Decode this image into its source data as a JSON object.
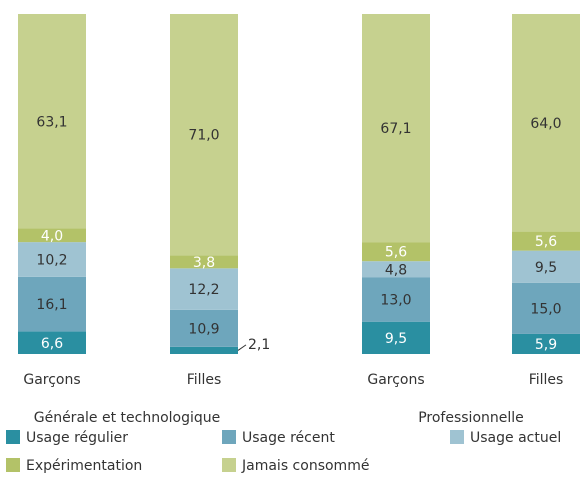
{
  "chart_data": {
    "type": "stacked-bar",
    "groups": [
      "Générale et technologique",
      "Professionnelle"
    ],
    "categories": [
      "Garçons",
      "Filles",
      "Garçons",
      "Filles"
    ],
    "series": [
      {
        "name": "Usage régulier",
        "color": "#2a8fa1",
        "values": [
          6.6,
          2.1,
          9.5,
          5.9
        ],
        "value_labels": [
          "6,6",
          "2,1",
          "9,5",
          "5,9"
        ]
      },
      {
        "name": "Usage récent",
        "color": "#6ea6bc",
        "values": [
          16.1,
          10.9,
          13.0,
          15.0
        ],
        "value_labels": [
          "16,1",
          "10,9",
          "13,0",
          "15,0"
        ]
      },
      {
        "name": "Usage actuel",
        "color": "#9fc3d2",
        "values": [
          10.2,
          12.2,
          4.8,
          9.5
        ],
        "value_labels": [
          "10,2",
          "12,2",
          "4,8",
          "9,5"
        ]
      },
      {
        "name": "Expérimentation",
        "color": "#b3c268",
        "values": [
          4.0,
          3.8,
          5.6,
          5.6
        ],
        "value_labels": [
          "4,0",
          "3,8",
          "5,6",
          "5,6"
        ]
      },
      {
        "name": "Jamais consommé",
        "color": "#c6d18f",
        "values": [
          63.1,
          71.0,
          67.1,
          64.0
        ],
        "value_labels": [
          "63,1",
          "71,0",
          "67,1",
          "64,0"
        ]
      }
    ]
  }
}
